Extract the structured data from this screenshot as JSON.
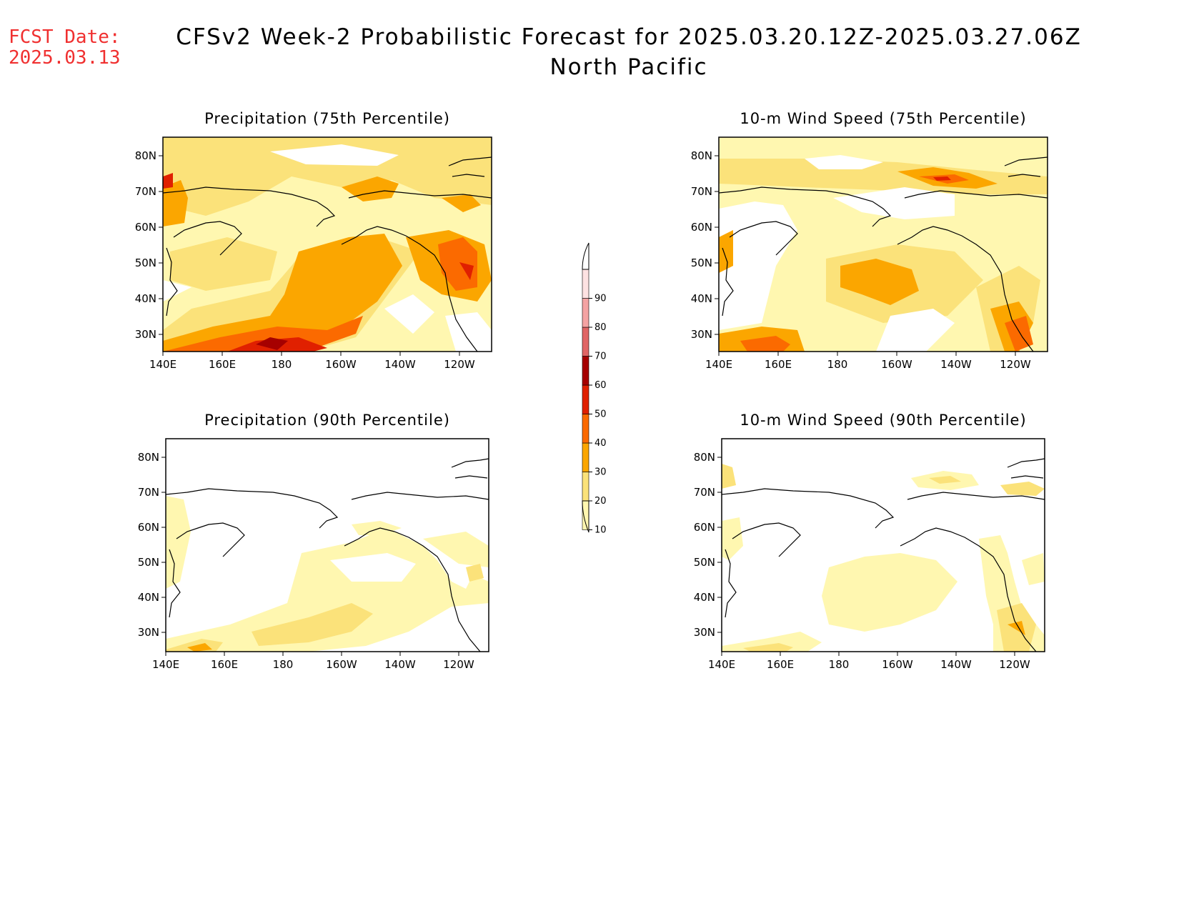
{
  "header": {
    "fcst_label": "FCST Date:",
    "fcst_date": "2025.03.13",
    "title": "CFSv2 Week-2 Probabilistic Forecast for 2025.03.20.12Z-2025.03.27.06Z",
    "region": "North Pacific"
  },
  "panels": [
    {
      "id": "p75",
      "title": "Precipitation (75th Percentile)"
    },
    {
      "id": "w75",
      "title": "10-m Wind Speed (75th Percentile)"
    },
    {
      "id": "p90",
      "title": "Precipitation (90th Percentile)"
    },
    {
      "id": "w90",
      "title": "10-m Wind Speed (90th Percentile)"
    }
  ],
  "axes": {
    "lat_ticks": [
      "80N",
      "70N",
      "60N",
      "50N",
      "40N",
      "30N"
    ],
    "lon_ticks": [
      "140E",
      "160E",
      "180",
      "160W",
      "140W",
      "120W"
    ]
  },
  "colorbar": {
    "levels": [
      "10",
      "20",
      "30",
      "40",
      "50",
      "60",
      "70",
      "80",
      "90"
    ],
    "colors": [
      "#fff7b0",
      "#fbe27a",
      "#fba600",
      "#fb6a00",
      "#e02000",
      "#a60000",
      "#e06565",
      "#f4a3a3",
      "#fde2e2"
    ]
  }
}
